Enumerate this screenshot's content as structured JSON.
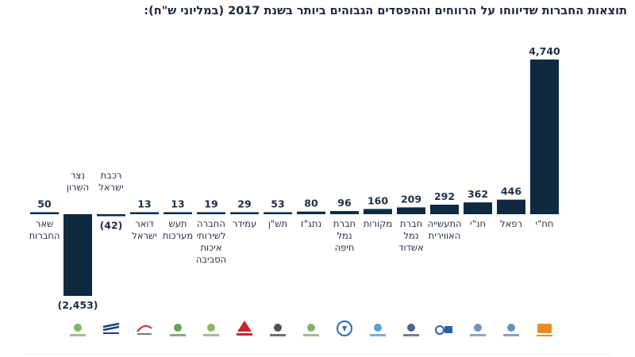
{
  "chart_data": {
    "type": "bar",
    "title": "תוצאות החברות שדיווחו על הרווחים וההפסדים הגבוהים ביותר בשנת 2017 (במליוני ש\"ח):",
    "xlabel": "",
    "ylabel": "",
    "grid": false,
    "legend": "none",
    "categories": [
      [
        "חח\"י"
      ],
      [
        "רפאל"
      ],
      [
        "חנ\"י"
      ],
      [
        "התעשייה",
        "האווירית"
      ],
      [
        "חברת",
        "נמל",
        "אשדוד"
      ],
      [
        "מקורות"
      ],
      [
        "חברת",
        "נמל",
        "חיפה"
      ],
      [
        "נתג\"ז"
      ],
      [
        "תש\"ן"
      ],
      [
        "עמידר"
      ],
      [
        "החברה",
        "לשירותי",
        "איכות",
        "הסביבה"
      ],
      [
        "תעש",
        "מערכות"
      ],
      [
        "דואר",
        "ישראל"
      ],
      [
        "רכבת",
        "ישראל"
      ],
      [
        "נצר",
        "השרון"
      ],
      [
        "שאר",
        "החברות"
      ]
    ],
    "values": [
      4740,
      446,
      362,
      292,
      209,
      160,
      96,
      80,
      53,
      29,
      19,
      13,
      13,
      -42,
      -2453,
      50
    ],
    "value_labels": [
      "4,740",
      "446",
      "362",
      "292",
      "209",
      "160",
      "96",
      "80",
      "53",
      "29",
      "19",
      "13",
      "13",
      "(42)",
      "(2,453)",
      "50"
    ],
    "colors": {
      "bar": "#0f2a40",
      "text": "#1f2f44",
      "logo_accent": "#e4513c"
    }
  },
  "logos": [
    {
      "icon": "iec-logo",
      "color": "#f08a24"
    },
    {
      "icon": "rafael-logo",
      "color": "#4a7fb8"
    },
    {
      "icon": "hanal-logo",
      "color": "#5b7fb4"
    },
    {
      "icon": "iai-logo",
      "color": "#2463a8"
    },
    {
      "icon": "ashdod-port-logo",
      "color": "#2b4a7a"
    },
    {
      "icon": "mekorot-logo",
      "color": "#3a8fd0"
    },
    {
      "icon": "haifa-port-logo",
      "color": "#2b6fb0"
    },
    {
      "icon": "natgaz-logo",
      "color": "#6aa84f"
    },
    {
      "icon": "tashan-logo",
      "color": "#333333"
    },
    {
      "icon": "amidar-logo",
      "color": "#c8262e"
    },
    {
      "icon": "environment-logo",
      "color": "#7aa84a"
    },
    {
      "icon": "imi-logo",
      "color": "#4c8f3a"
    },
    {
      "icon": "israel-post-logo",
      "color": "#d8262e"
    },
    {
      "icon": "israel-railways-logo",
      "color": "#1f3f7a"
    },
    {
      "icon": "netzer-hasharon-logo",
      "color": "#6aa84f"
    }
  ]
}
